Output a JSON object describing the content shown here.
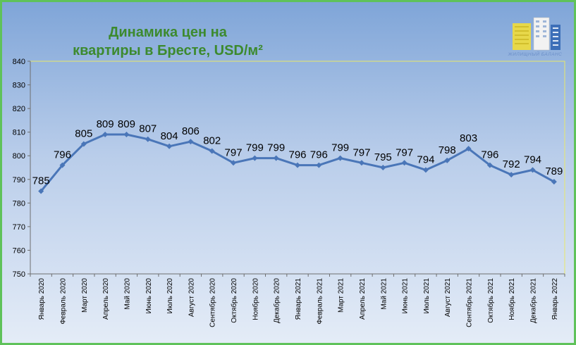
{
  "title_lines": [
    "Динамика цен на",
    "квартиры в Бресте, USD/м²"
  ],
  "logo_text": "ЖИЛИЩНЫЙ БАЛАНС",
  "colors": {
    "line": "#4a76b8",
    "frame": "#5fc25a",
    "title": "#3c8a2e",
    "plot_border": "#e8e86a"
  },
  "chart_data": {
    "type": "line",
    "title": "Динамика цен на квартиры в Бресте, USD/м²",
    "categories": [
      "Январь 2020",
      "Февраль 2020",
      "Март 2020",
      "Апрель 2020",
      "Май 2020",
      "Июнь 2020",
      "Июль 2020",
      "Август 2020",
      "Сентябрь 2020",
      "Октябрь 2020",
      "Ноябрь 2020",
      "Декабрь 2020",
      "Январь 2021",
      "Февраль 2021",
      "Март 2021",
      "Апрель 2021",
      "Май 2021",
      "Июнь 2021",
      "Июль 2021",
      "Август 2021",
      "Сентябрь 2021",
      "Октябрь 2021",
      "Ноябрь 2021",
      "Декабрь 2021",
      "Январь 2022"
    ],
    "values": [
      785,
      796,
      805,
      809,
      809,
      807,
      804,
      806,
      802,
      797,
      799,
      799,
      796,
      796,
      799,
      797,
      795,
      797,
      794,
      798,
      803,
      796,
      792,
      794,
      789
    ],
    "ylim": [
      750,
      840
    ],
    "yticks": [
      750,
      760,
      770,
      780,
      790,
      800,
      810,
      820,
      830,
      840
    ],
    "grid": false,
    "legend": "none"
  }
}
